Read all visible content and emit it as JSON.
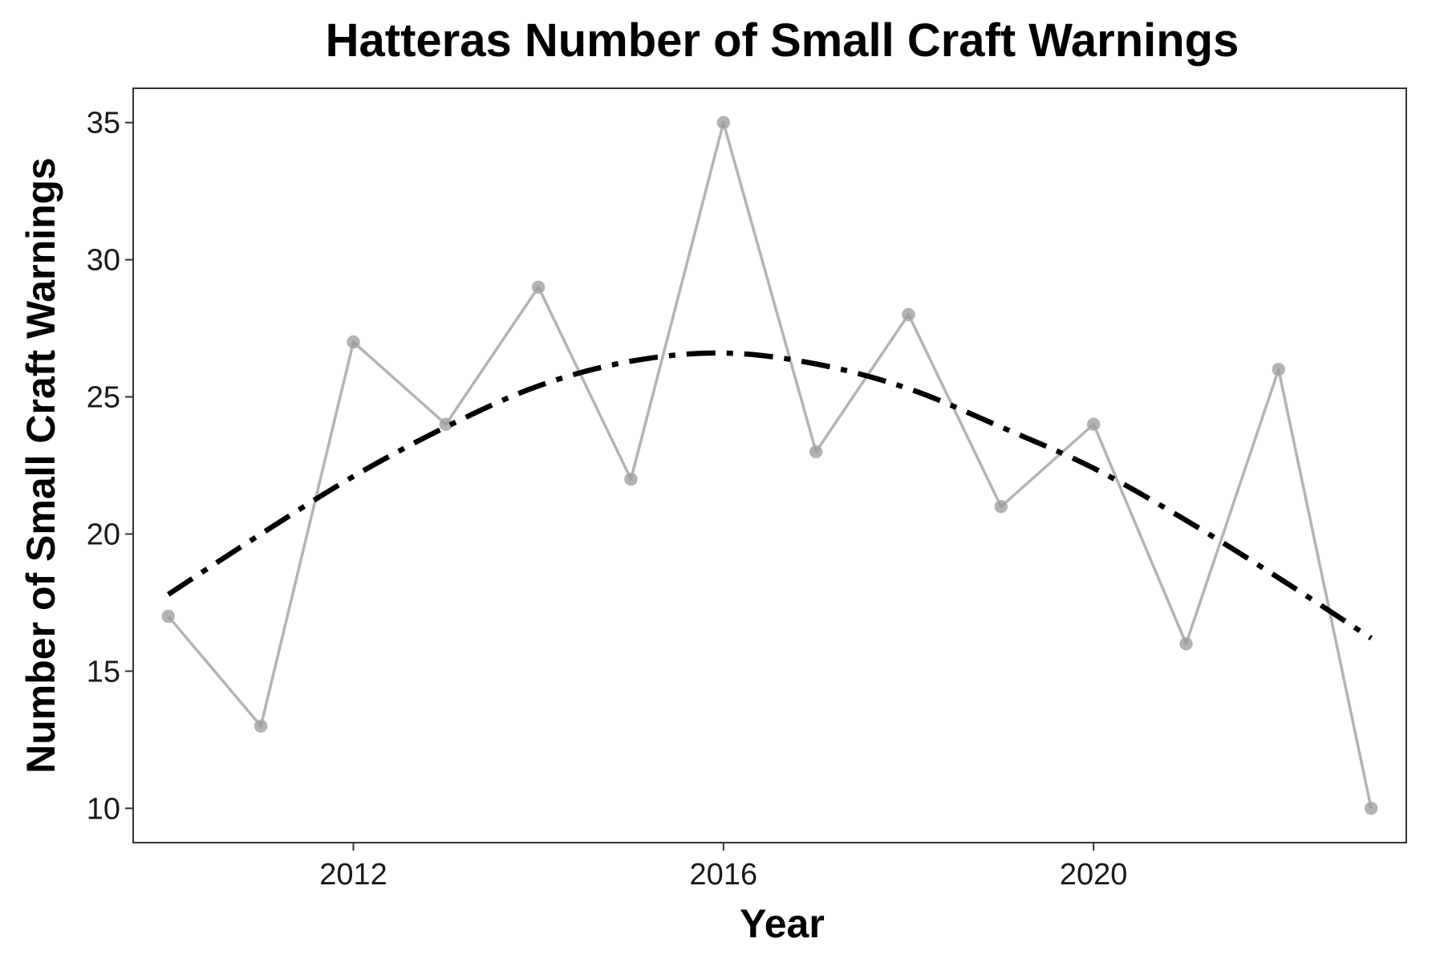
{
  "chart_data": {
    "type": "line",
    "title": "Hatteras Number of Small Craft Warnings",
    "xlabel": "Year",
    "ylabel": "Number of Small Craft Warnings",
    "xlim": [
      2009.62,
      2023.38
    ],
    "ylim": [
      8.75,
      36.25
    ],
    "x_ticks": [
      2012,
      2016,
      2020
    ],
    "y_ticks": [
      10,
      15,
      20,
      25,
      30,
      35
    ],
    "grid": false,
    "series": [
      {
        "x": [
          2010,
          2011,
          2012,
          2013,
          2014,
          2015,
          2016,
          2017,
          2018,
          2019,
          2020,
          2021,
          2022,
          2023
        ],
        "values": [
          17,
          13,
          27,
          24,
          29,
          22,
          35,
          23,
          28,
          21,
          24,
          16,
          26,
          10
        ],
        "color": "#b3b3b3",
        "marker_color": "#999999"
      },
      {
        "x": [
          2010,
          2011,
          2012,
          2013,
          2014,
          2015,
          2016,
          2017,
          2018,
          2019,
          2020,
          2021,
          2022,
          2023
        ],
        "values": [
          17.8,
          20.0,
          22.1,
          23.9,
          25.4,
          26.3,
          26.6,
          26.2,
          25.3,
          23.9,
          22.4,
          20.5,
          18.4,
          16.2
        ],
        "color": "#000000",
        "style": "dashdot"
      }
    ]
  }
}
